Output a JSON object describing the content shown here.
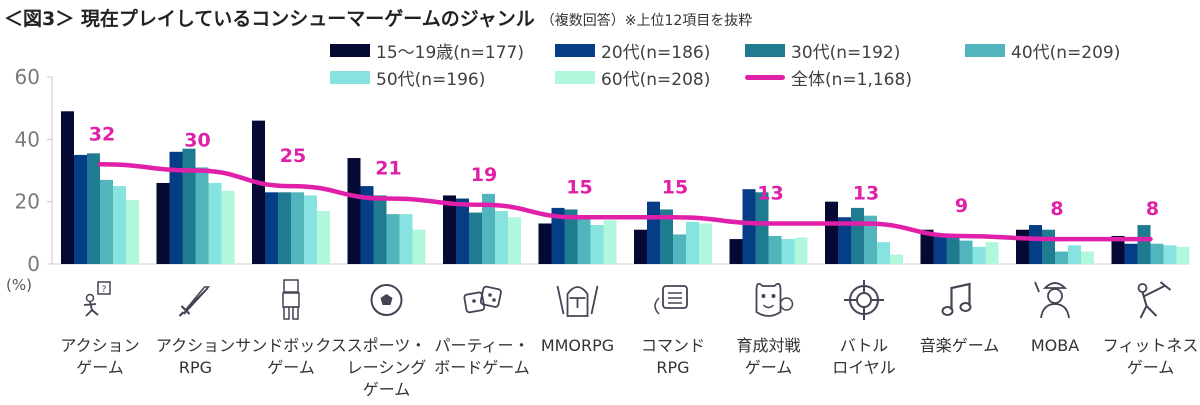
{
  "title": "＜図3＞ 現在プレイしているコンシューマーゲームのジャンル",
  "subtitle": "（複数回答）※上位12項目を抜粋",
  "chart_data": {
    "type": "bar",
    "title": "＜図3＞ 現在プレイしているコンシューマーゲームのジャンル",
    "xlabel": "",
    "ylabel": "(%)",
    "ylim": [
      0,
      60
    ],
    "yticks": [
      "0",
      "20",
      "40",
      "60"
    ],
    "grid": false,
    "legend_position": "top-right",
    "categories": [
      "アクション\nゲーム",
      "アクション\nRPG",
      "サンドボックス\nゲーム",
      "スポーツ・\nレーシング\nゲーム",
      "パーティー・\nボードゲーム",
      "MMORPG",
      "コマンド\nRPG",
      "育成対戦\nゲーム",
      "バトル\nロイヤル",
      "音楽ゲーム",
      "MOBA",
      "フィットネス\nゲーム"
    ],
    "icons": [
      "action-game-icon",
      "sword-icon",
      "block-figure-icon",
      "soccer-ball-icon",
      "dice-icon",
      "knight-helmet-icon",
      "command-menu-icon",
      "monster-icon",
      "crosshair-icon",
      "music-note-icon",
      "moba-character-icon",
      "fitness-pose-icon"
    ],
    "series": [
      {
        "name": "15～19歳(n=177)",
        "color": "#050a35",
        "values": [
          49,
          26,
          46,
          34,
          22,
          13,
          11,
          8,
          20,
          11,
          11,
          9
        ]
      },
      {
        "name": "20代(n=186)",
        "color": "#063d87",
        "values": [
          35,
          36,
          23,
          25,
          21,
          18,
          20,
          24,
          15,
          9,
          12.5,
          6.5
        ]
      },
      {
        "name": "30代(n=192)",
        "color": "#1f7b8f",
        "values": [
          35.5,
          37,
          23,
          22,
          16.5,
          17.5,
          17.5,
          23,
          18,
          9,
          11,
          12.5
        ]
      },
      {
        "name": "40代(n=209)",
        "color": "#52b5bd",
        "values": [
          27,
          31,
          23,
          16,
          22.5,
          15,
          9.5,
          9,
          15.5,
          7.5,
          4,
          6.5
        ]
      },
      {
        "name": "50代(n=196)",
        "color": "#86e3df",
        "values": [
          25,
          26,
          22,
          16,
          17,
          12.5,
          13.5,
          8,
          7,
          5.5,
          6,
          6
        ]
      },
      {
        "name": "60代(n=208)",
        "color": "#b0f7dc",
        "values": [
          20.5,
          23.5,
          17,
          11,
          15,
          14,
          13,
          8.5,
          3,
          7,
          4,
          5.5
        ]
      }
    ],
    "line": {
      "name": "全体(n=1,168)",
      "color": "#e020a8",
      "values": [
        32,
        30,
        25,
        21,
        19,
        15,
        15,
        13,
        13,
        9,
        8,
        8
      ],
      "labels": [
        "32",
        "30",
        "25",
        "21",
        "19",
        "15",
        "15",
        "13",
        "13",
        "9",
        "8",
        "8"
      ]
    }
  }
}
